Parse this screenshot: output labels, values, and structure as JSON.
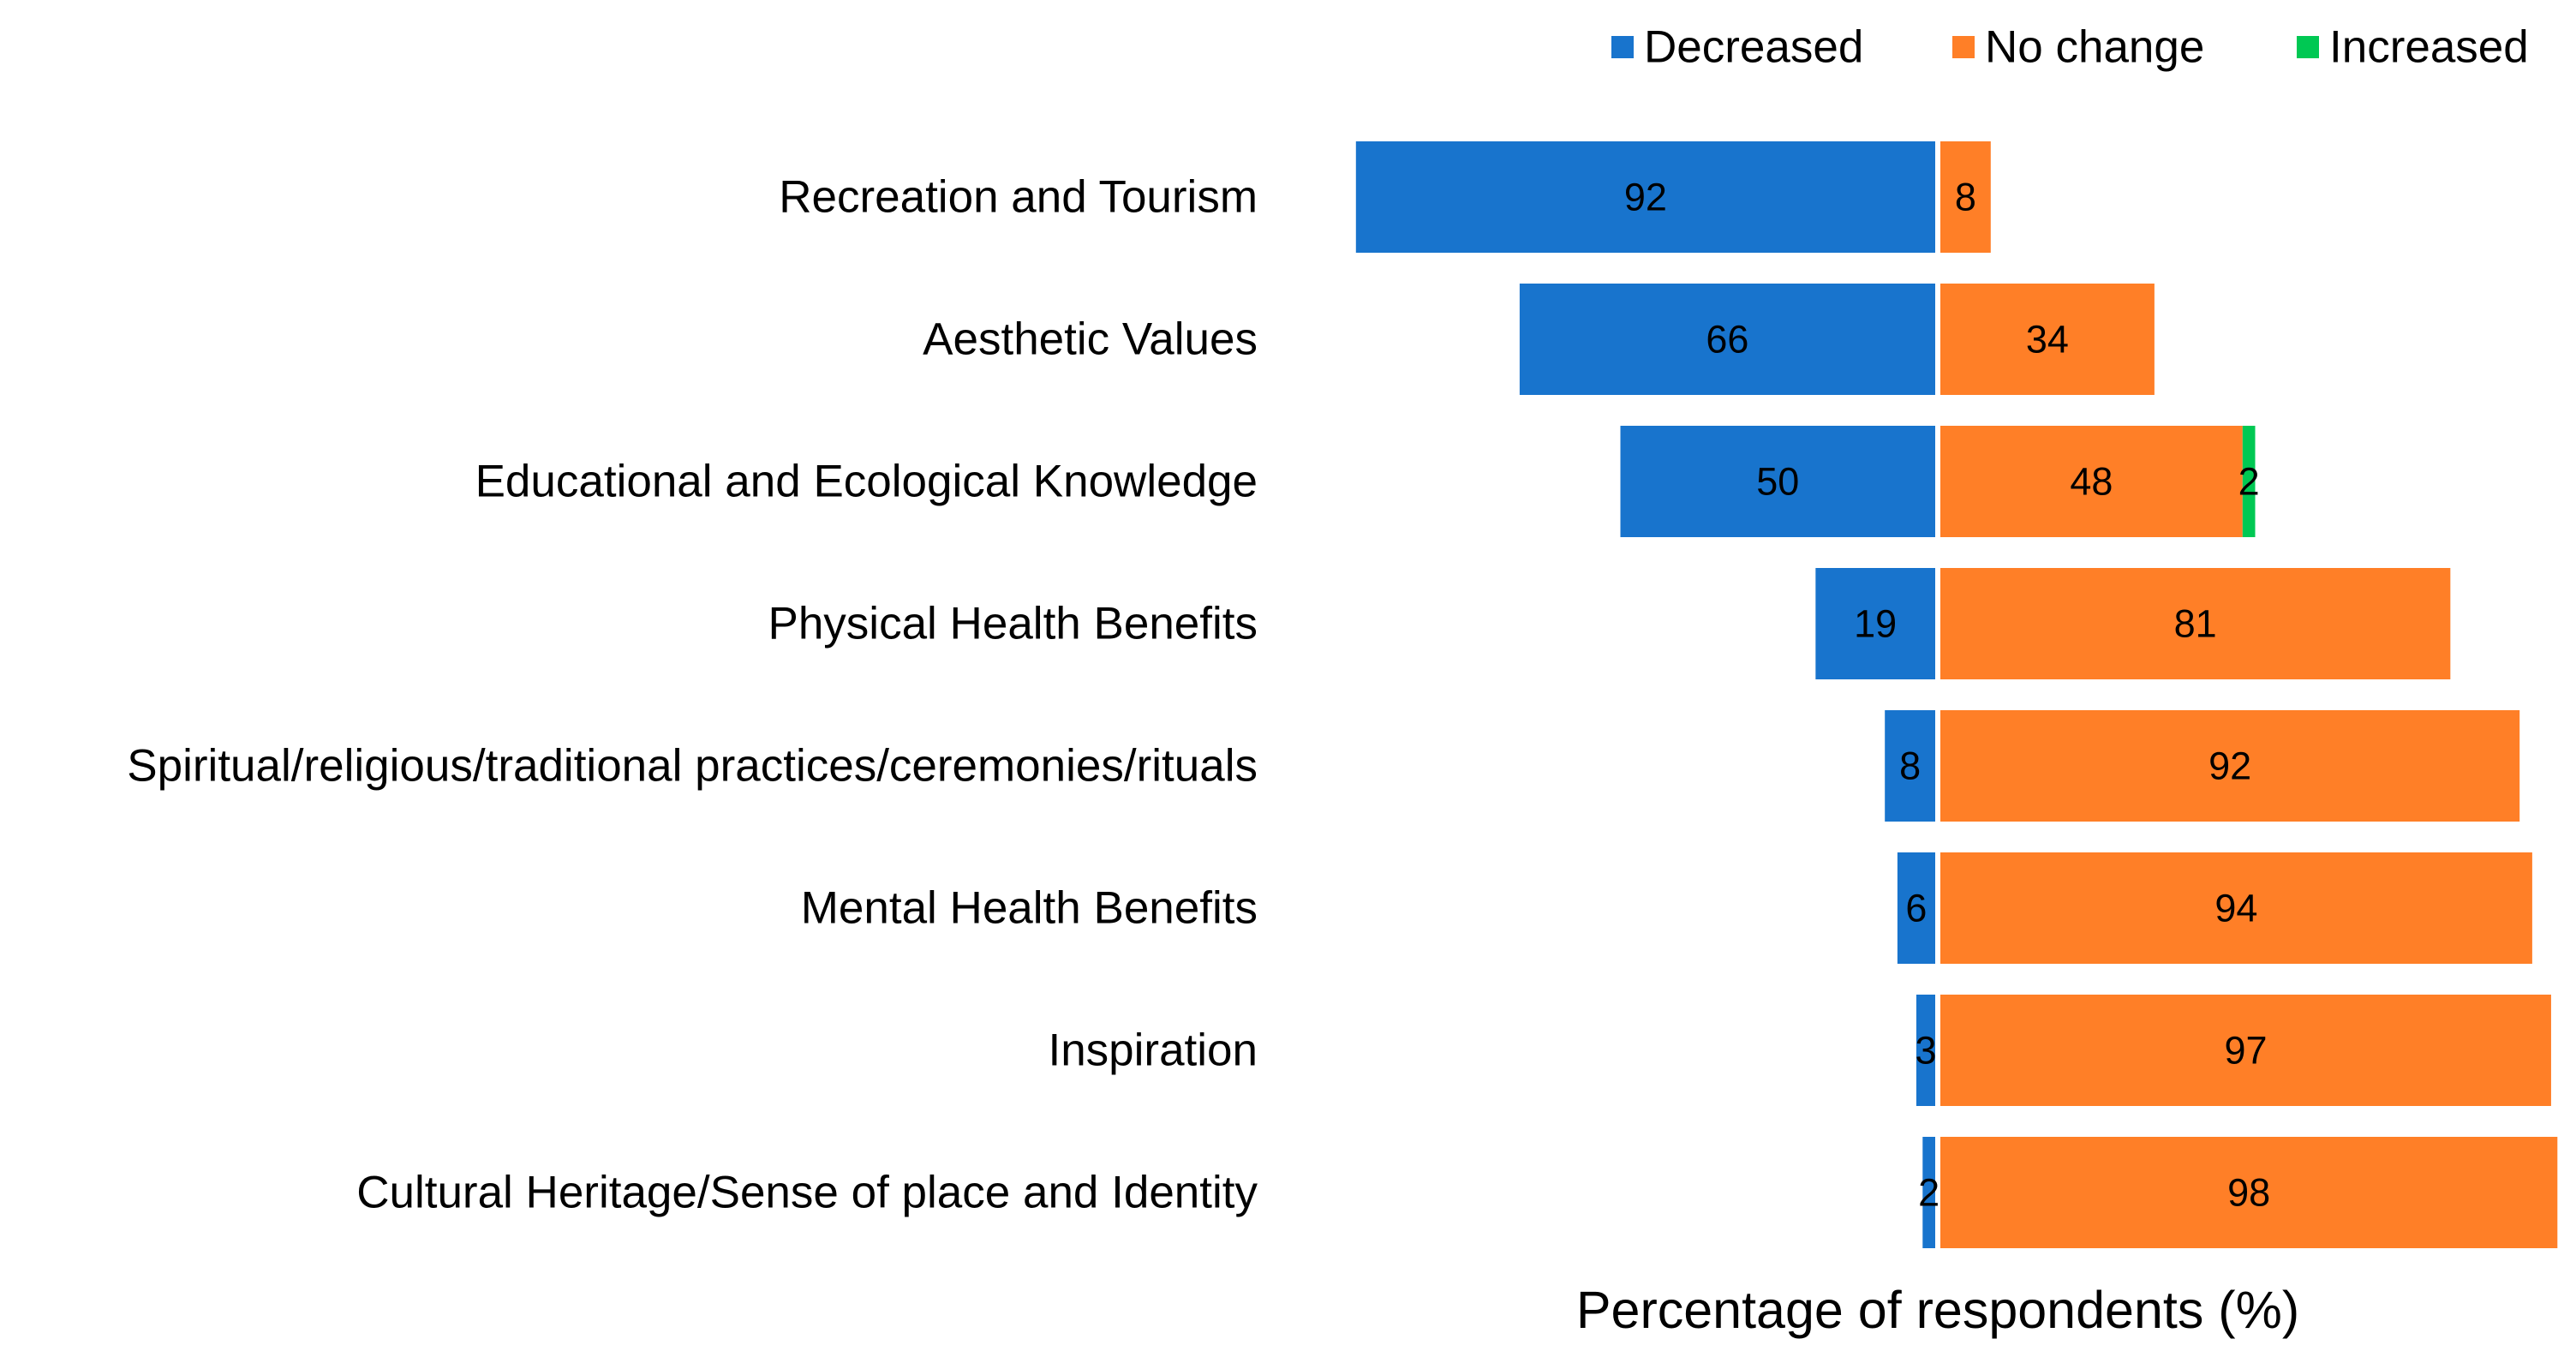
{
  "chart_data": {
    "type": "bar",
    "orientation": "horizontal",
    "stacking": "diverging",
    "title": "",
    "xlabel": "Percentage of respondents (%)",
    "ylabel": "",
    "categories": [
      "Recreation and Tourism",
      "Aesthetic Values",
      "Educational and Ecological Knowledge",
      "Physical Health Benefits",
      "Spiritual/religious/traditional practices/ceremonies/rituals",
      "Mental Health Benefits",
      "Inspiration",
      "Cultural Heritage/Sense of place and Identity"
    ],
    "series": [
      {
        "name": "Decreased",
        "color": "#1874CD",
        "direction": "left",
        "values": [
          92,
          66,
          50,
          19,
          8,
          6,
          3,
          2
        ]
      },
      {
        "name": "No change",
        "color": "#FF7F27",
        "direction": "right",
        "values": [
          8,
          34,
          48,
          81,
          92,
          94,
          97,
          98
        ]
      },
      {
        "name": "Increased",
        "color": "#00C853",
        "direction": "right",
        "values": [
          0,
          0,
          2,
          0,
          0,
          0,
          0,
          0
        ]
      }
    ],
    "legend": {
      "position": "top-right",
      "entries": [
        "Decreased",
        "No change",
        "Increased"
      ]
    },
    "grid": false,
    "xlim": [
      -100,
      100
    ]
  }
}
